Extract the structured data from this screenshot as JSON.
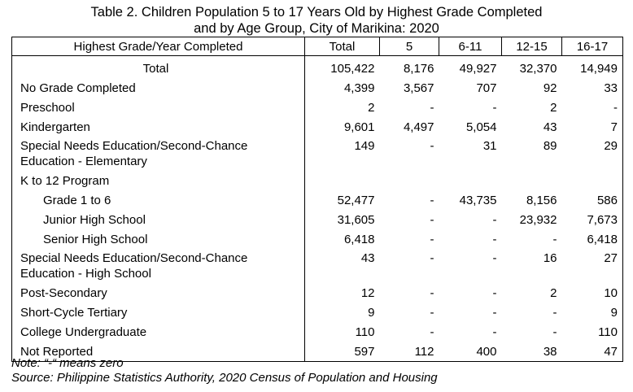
{
  "title": {
    "line1": "Table 2. Children Population 5 to 17 Years Old by Highest Grade Completed",
    "line2": "and by Age Group, City of Marikina: 2020"
  },
  "headers": [
    "Highest Grade/Year Completed",
    "Total",
    "5",
    "6-11",
    "12-15",
    "16-17"
  ],
  "rows": [
    {
      "label": "Total",
      "values": [
        "105,422",
        "8,176",
        "49,927",
        "32,370",
        "14,949"
      ]
    },
    {
      "label": "No Grade Completed",
      "values": [
        "4,399",
        "3,567",
        "707",
        "92",
        "33"
      ]
    },
    {
      "label": "Preschool",
      "values": [
        "2",
        "-",
        "-",
        "2",
        "-"
      ]
    },
    {
      "label": "Kindergarten",
      "values": [
        "9,601",
        "4,497",
        "5,054",
        "43",
        "7"
      ]
    },
    {
      "label_line1": "Special Needs Education/Second-Chance",
      "label_line2": "Education - Elementary",
      "values": [
        "149",
        "-",
        "31",
        "89",
        "29"
      ]
    },
    {
      "label": "K to 12 Program",
      "values": [
        "",
        "",
        "",
        "",
        ""
      ]
    },
    {
      "label": "Grade 1 to 6",
      "values": [
        "52,477",
        "-",
        "43,735",
        "8,156",
        "586"
      ]
    },
    {
      "label": "Junior High School",
      "values": [
        "31,605",
        "-",
        "-",
        "23,932",
        "7,673"
      ]
    },
    {
      "label": "Senior High School",
      "values": [
        "6,418",
        "-",
        "-",
        "-",
        "6,418"
      ]
    },
    {
      "label_line1": "Special Needs Education/Second-Chance",
      "label_line2": "Education - High School",
      "values": [
        "43",
        "-",
        "-",
        "16",
        "27"
      ]
    },
    {
      "label": "Post-Secondary",
      "values": [
        "12",
        "-",
        "-",
        "2",
        "10"
      ]
    },
    {
      "label": "Short-Cycle Tertiary",
      "values": [
        "9",
        "-",
        "-",
        "-",
        "9"
      ]
    },
    {
      "label": "College Undergraduate",
      "values": [
        "110",
        "-",
        "-",
        "-",
        "110"
      ]
    },
    {
      "label": "Not Reported",
      "values": [
        "597",
        "112",
        "400",
        "38",
        "47"
      ]
    }
  ],
  "note": "Note: “-“ means zero",
  "source": "Source: Philippine Statistics Authority, 2020 Census of Population and Housing"
}
